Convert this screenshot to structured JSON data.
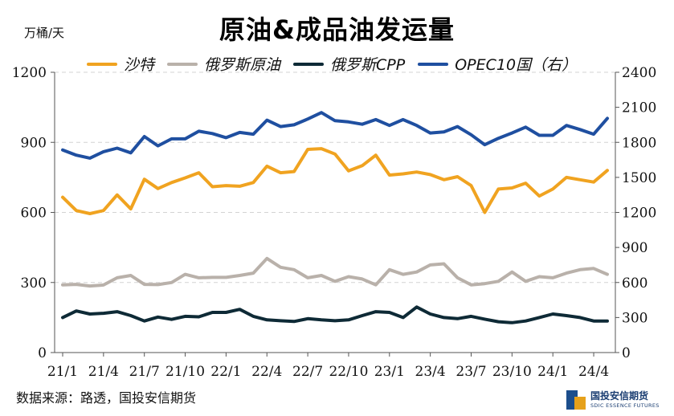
{
  "header": {
    "unit": "万桶/天",
    "title": "原油&成品油发运量"
  },
  "legend": [
    {
      "label": "沙特",
      "color": "#f0a320"
    },
    {
      "label": "俄罗斯原油",
      "color": "#b9b1aa"
    },
    {
      "label": "俄罗斯CPP",
      "color": "#0e2a36"
    },
    {
      "label": "OPEC10国（右）",
      "color": "#1f4fa0"
    }
  ],
  "footer": {
    "source": "数据来源：路透，国投安信期货",
    "logo_cn": "国投安信期货",
    "logo_en": "SDIC ESSENCE FUTURES"
  },
  "chart_data": {
    "type": "line",
    "title": "原油&成品油发运量",
    "ylabel": "万桶/天",
    "x_ticks": [
      "21/1",
      "21/4",
      "21/7",
      "21/10",
      "22/1",
      "22/4",
      "22/7",
      "22/10",
      "23/1",
      "23/4",
      "23/7",
      "23/10",
      "24/1",
      "24/4"
    ],
    "ylim_left": [
      0,
      1200
    ],
    "yticks_left": [
      0,
      300,
      600,
      900,
      1200
    ],
    "ylim_right": [
      0,
      2400
    ],
    "yticks_right": [
      0,
      300,
      600,
      900,
      1200,
      1500,
      1800,
      2100,
      2400
    ],
    "grid": "horizontal-dashed",
    "legend_position": "top",
    "x": [
      "21/1",
      "21/2",
      "21/3",
      "21/4",
      "21/5",
      "21/6",
      "21/7",
      "21/8",
      "21/9",
      "21/10",
      "21/11",
      "21/12",
      "22/1",
      "22/2",
      "22/3",
      "22/4",
      "22/5",
      "22/6",
      "22/7",
      "22/8",
      "22/9",
      "22/10",
      "22/11",
      "22/12",
      "23/1",
      "23/2",
      "23/3",
      "23/4",
      "23/5",
      "23/6",
      "23/7",
      "23/8",
      "23/9",
      "23/10",
      "23/11",
      "23/12",
      "24/1",
      "24/2",
      "24/3",
      "24/4",
      "24/5"
    ],
    "series": [
      {
        "name": "沙特",
        "axis": "left",
        "color": "#f0a320",
        "values": [
          665,
          608,
          595,
          608,
          675,
          615,
          742,
          702,
          728,
          748,
          770,
          710,
          715,
          712,
          728,
          798,
          770,
          775,
          870,
          873,
          850,
          778,
          800,
          845,
          760,
          765,
          773,
          762,
          740,
          753,
          715,
          600,
          700,
          705,
          725,
          670,
          700,
          750,
          740,
          730,
          780
        ]
      },
      {
        "name": "俄罗斯原油",
        "axis": "left",
        "color": "#b9b1aa",
        "values": [
          290,
          292,
          285,
          289,
          320,
          330,
          292,
          291,
          300,
          335,
          320,
          322,
          322,
          330,
          340,
          403,
          365,
          355,
          320,
          330,
          305,
          325,
          315,
          290,
          355,
          335,
          345,
          375,
          380,
          320,
          290,
          295,
          305,
          345,
          305,
          325,
          320,
          340,
          355,
          360,
          335
        ]
      },
      {
        "name": "俄罗斯CPP",
        "axis": "left",
        "color": "#0e2a36",
        "values": [
          150,
          178,
          165,
          168,
          175,
          158,
          135,
          152,
          142,
          155,
          153,
          172,
          172,
          185,
          155,
          140,
          136,
          133,
          145,
          140,
          136,
          140,
          158,
          175,
          172,
          150,
          195,
          165,
          150,
          145,
          155,
          143,
          132,
          128,
          135,
          150,
          165,
          158,
          150,
          135,
          135
        ]
      },
      {
        "name": "OPEC10国（右）",
        "axis": "right",
        "color": "#1f4fa0",
        "values": [
          1735,
          1690,
          1665,
          1720,
          1750,
          1710,
          1850,
          1770,
          1830,
          1830,
          1895,
          1875,
          1840,
          1885,
          1870,
          1990,
          1935,
          1950,
          2000,
          2055,
          1985,
          1975,
          1955,
          1995,
          1945,
          1995,
          1945,
          1880,
          1890,
          1935,
          1865,
          1780,
          1835,
          1880,
          1930,
          1860,
          1860,
          1945,
          1910,
          1870,
          2005
        ]
      }
    ]
  }
}
